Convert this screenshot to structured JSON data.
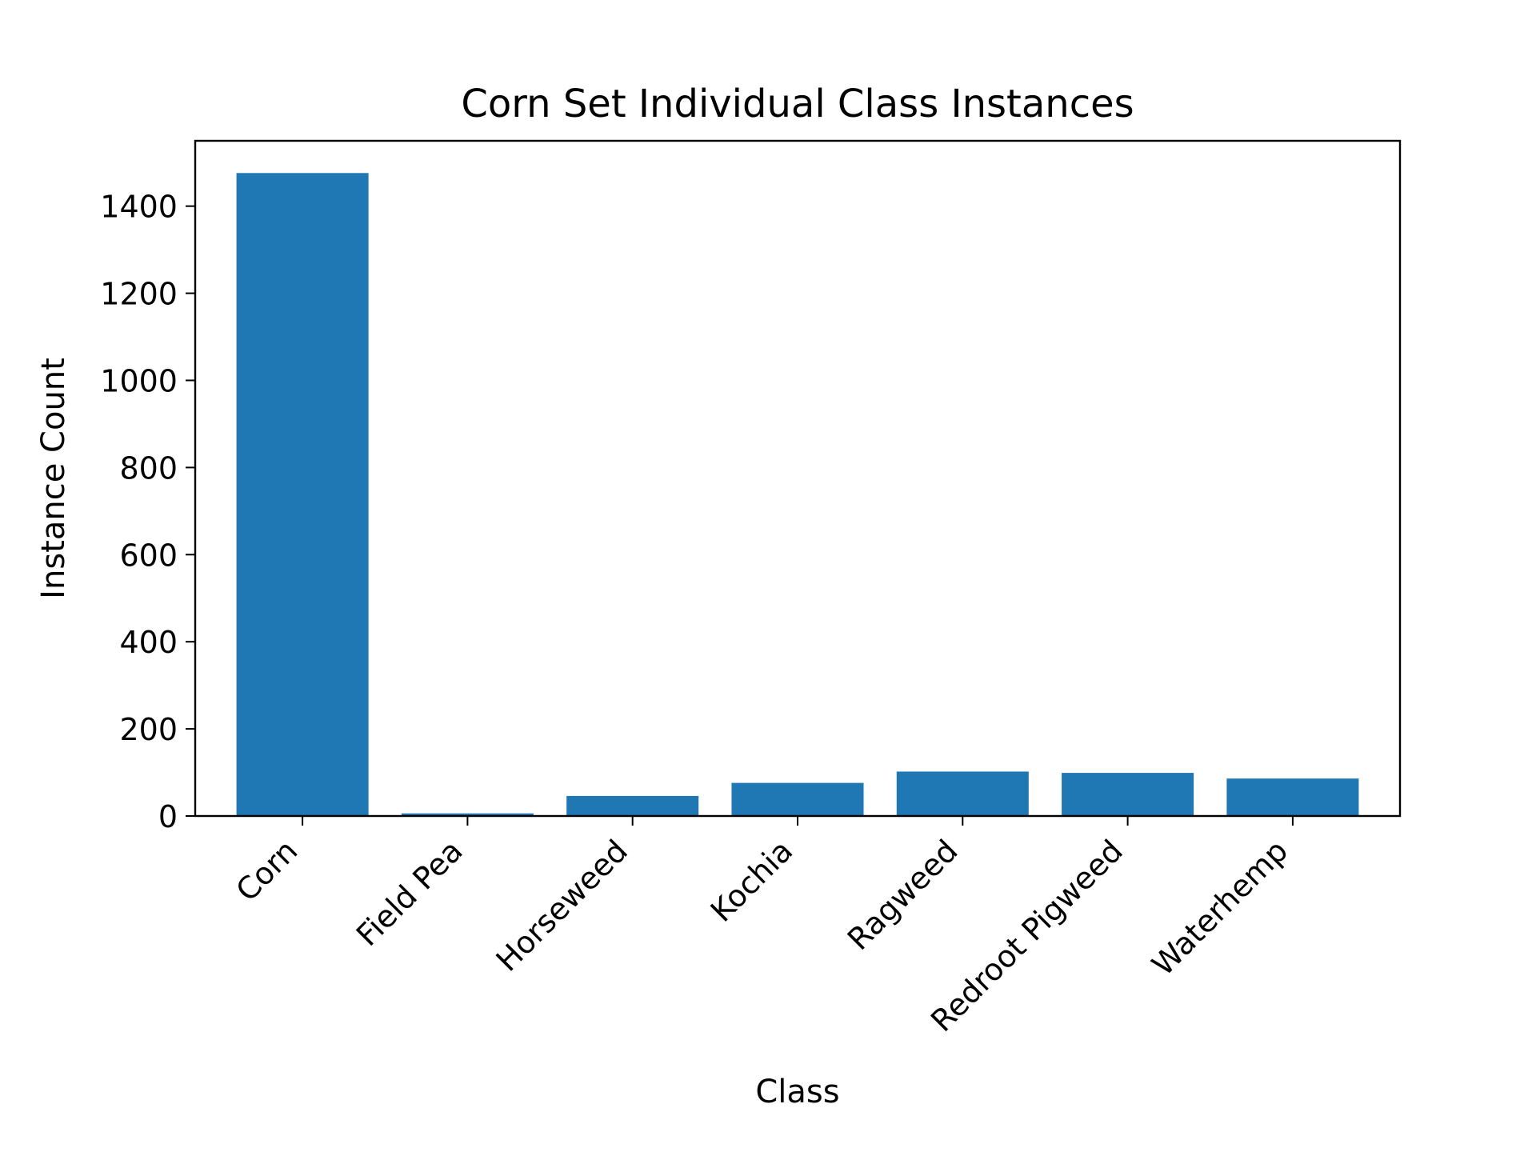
{
  "chart_data": {
    "type": "bar",
    "title": "Corn Set Individual Class Instances",
    "xlabel": "Class",
    "ylabel": "Instance Count",
    "categories": [
      "Corn",
      "Field Pea",
      "Horseweed",
      "Kochia",
      "Ragweed",
      "Redroot Pigweed",
      "Waterhemp"
    ],
    "values": [
      1476,
      6,
      46,
      76,
      102,
      99,
      86
    ],
    "ylim": [
      0,
      1550
    ],
    "yticks": [
      0,
      200,
      400,
      600,
      800,
      1000,
      1200,
      1400
    ],
    "bar_color": "#1f77b4",
    "grid": false,
    "legend": null
  }
}
